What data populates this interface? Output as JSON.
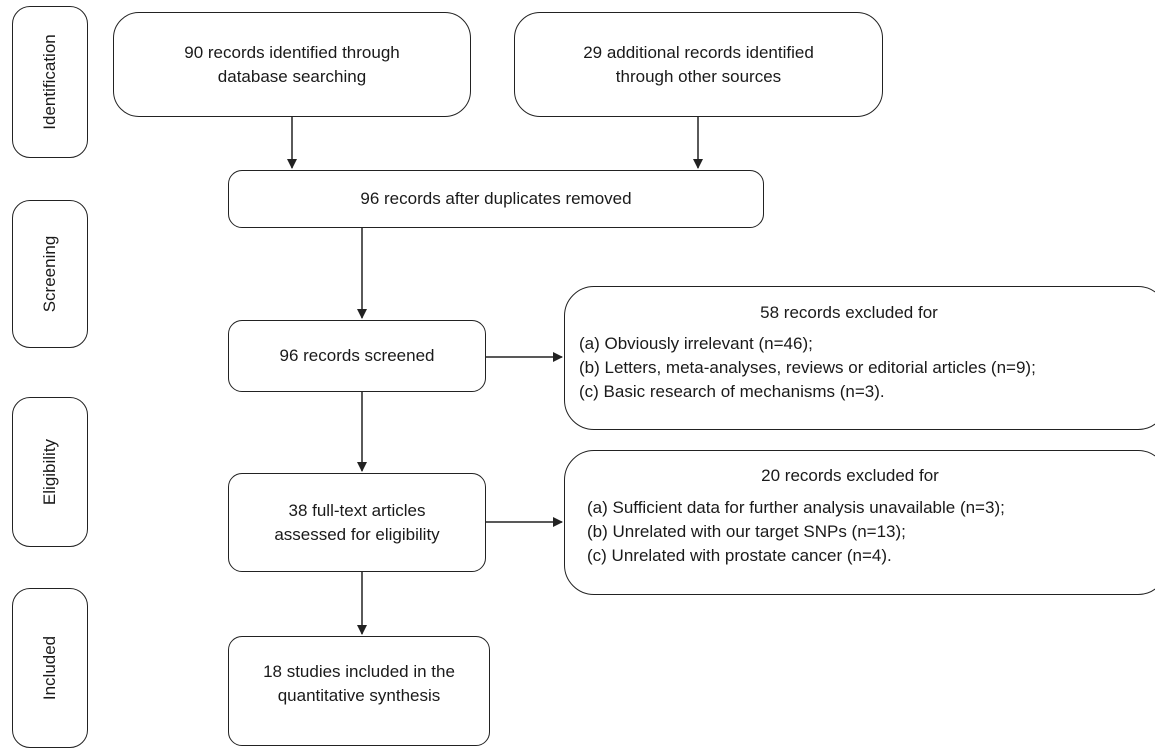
{
  "stages": {
    "identification": "Identification",
    "screening": "Screening",
    "eligibility": "Eligibility",
    "included": "Included"
  },
  "boxes": {
    "database": [
      "90 records identified through",
      "database searching"
    ],
    "other_sources": [
      "29 additional records identified",
      "through other sources"
    ],
    "duplicates_removed": "96 records after duplicates removed",
    "screened": "96 records screened",
    "full_text": [
      "38 full-text articles",
      "assessed for eligibility"
    ],
    "included": [
      "18 studies included in the",
      "quantitative synthesis"
    ]
  },
  "exclusions": {
    "screening": {
      "title": "58 records excluded for",
      "items": [
        "(a) Obviously irrelevant (n=46);",
        "(b) Letters, meta-analyses, reviews or editorial articles (n=9);",
        "(c) Basic research of mechanisms (n=3)."
      ]
    },
    "eligibility": {
      "title": "20 records excluded for",
      "items": [
        "(a) Sufficient data for further analysis unavailable (n=3);",
        "(b) Unrelated with our target SNPs (n=13);",
        "(c) Unrelated with prostate cancer (n=4)."
      ]
    }
  }
}
